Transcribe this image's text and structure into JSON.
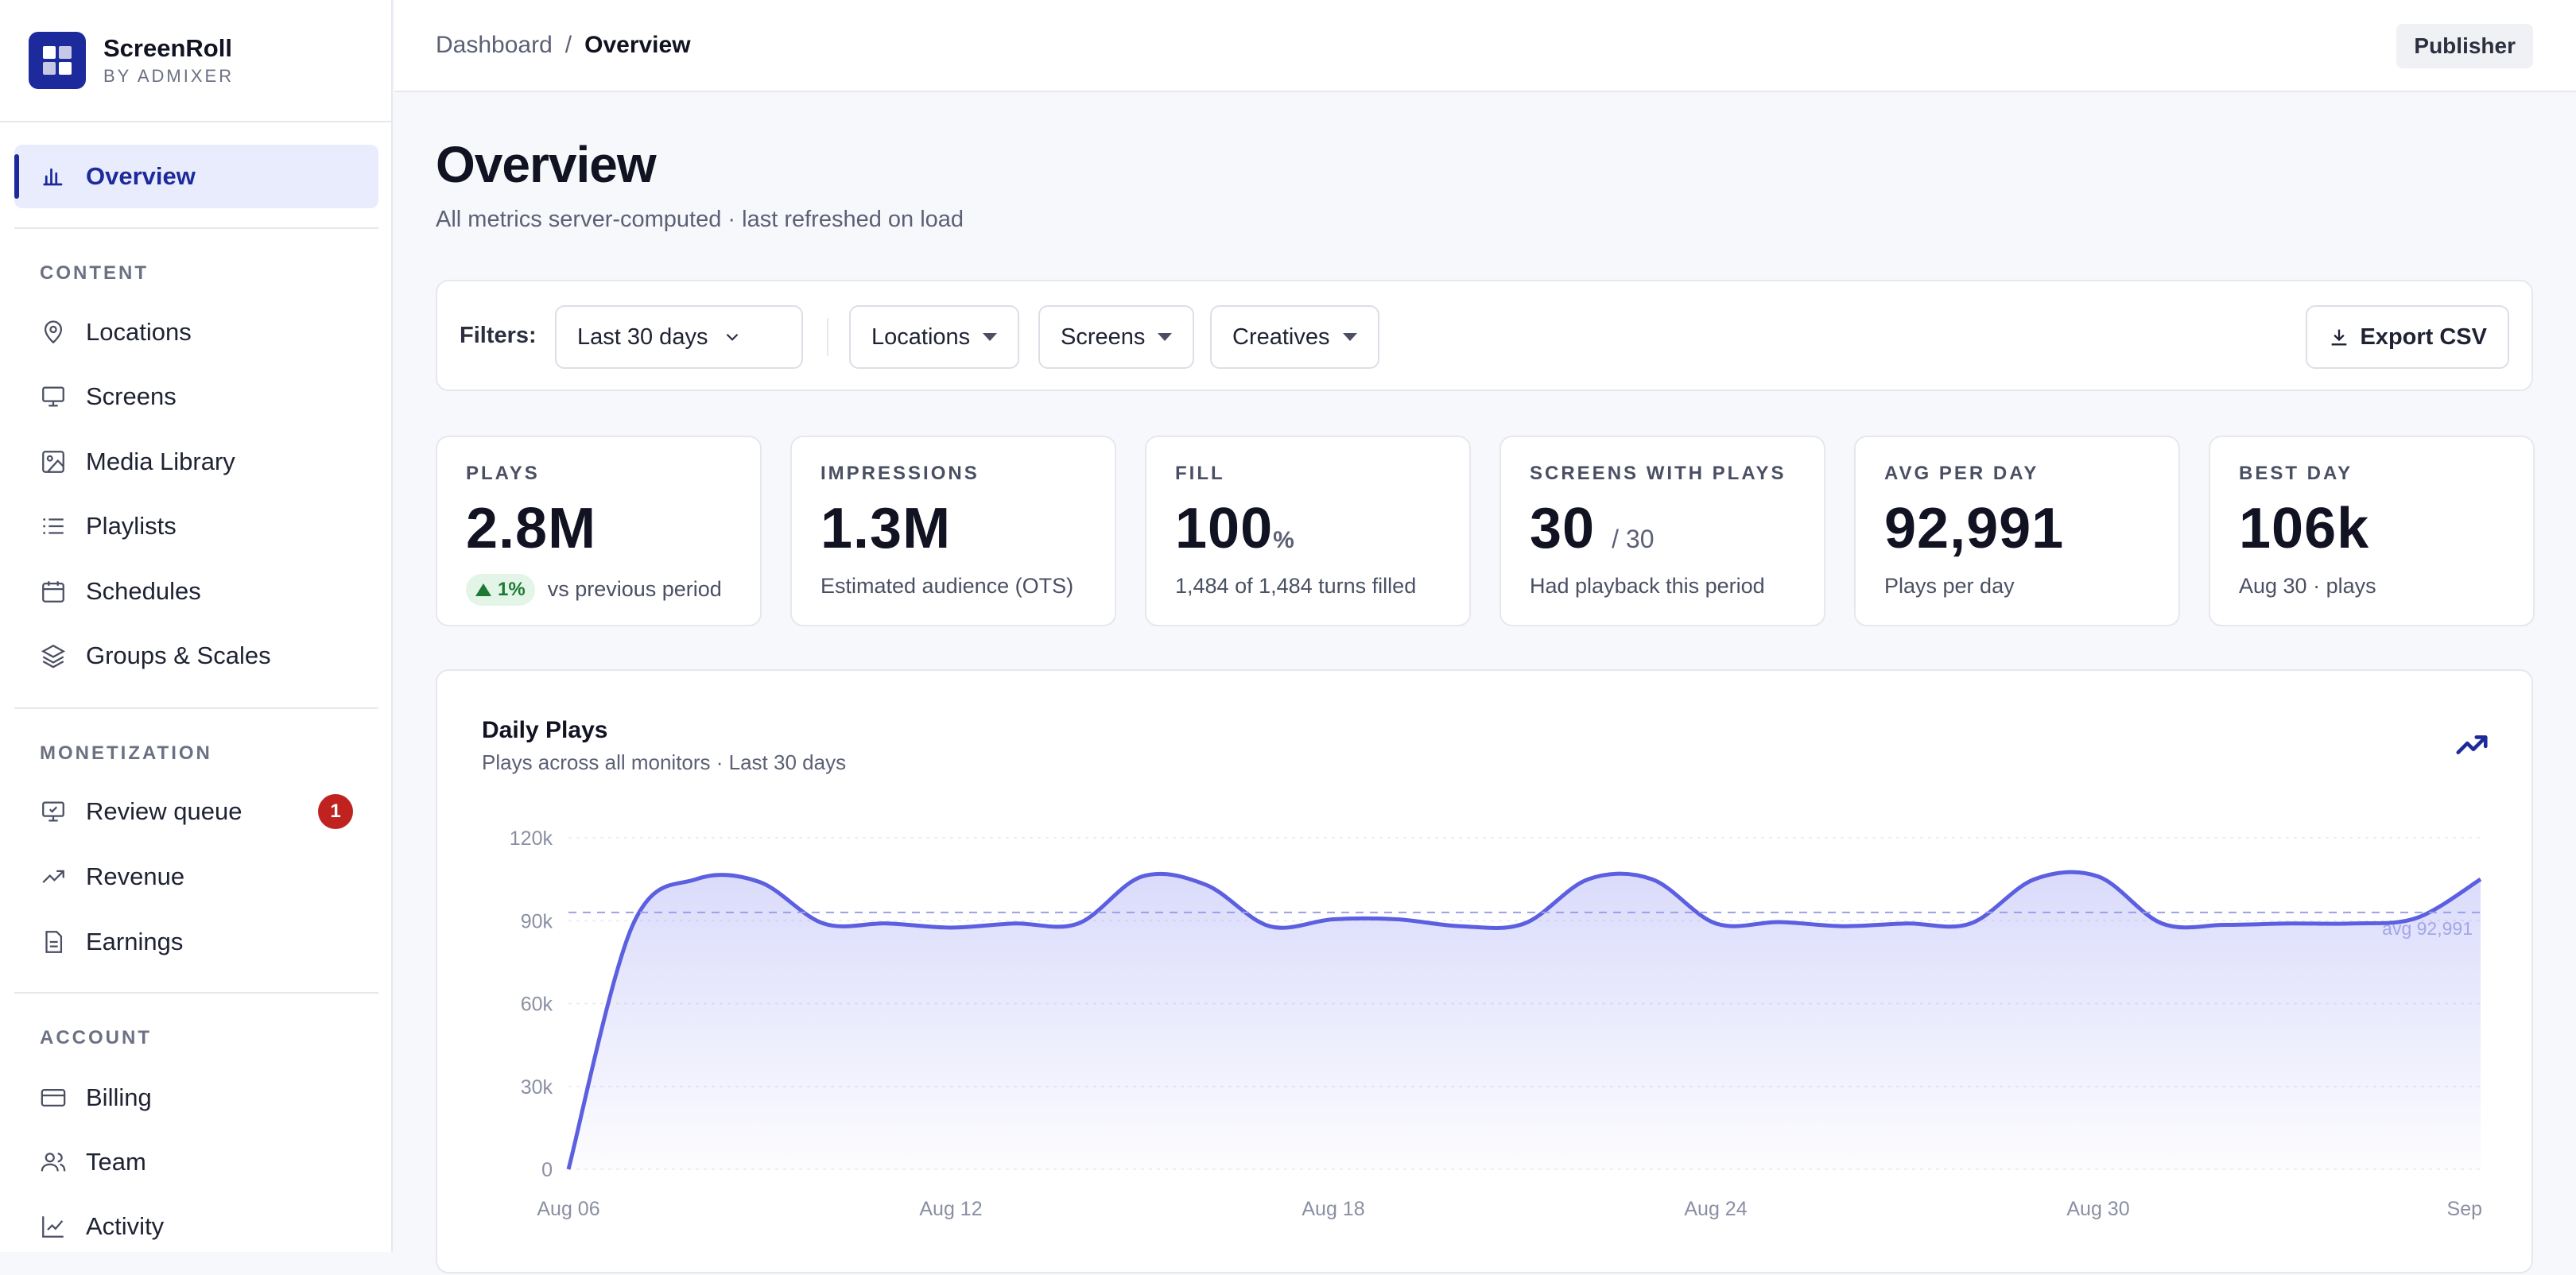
{
  "brand": {
    "name": "ScreenRoll",
    "sub": "BY ADMIXER"
  },
  "sidebar": {
    "active": {
      "label": "Overview",
      "icon": "bar-chart-icon"
    },
    "sections": [
      {
        "title": "CONTENT",
        "items": [
          {
            "label": "Locations",
            "icon": "map-pin-icon"
          },
          {
            "label": "Screens",
            "icon": "monitor-icon"
          },
          {
            "label": "Media Library",
            "icon": "image-icon"
          },
          {
            "label": "Playlists",
            "icon": "list-icon"
          },
          {
            "label": "Schedules",
            "icon": "calendar-icon"
          },
          {
            "label": "Groups & Scales",
            "icon": "layers-icon"
          }
        ]
      },
      {
        "title": "MONETIZATION",
        "items": [
          {
            "label": "Review queue",
            "icon": "review-icon",
            "badge": "1"
          },
          {
            "label": "Revenue",
            "icon": "trending-up-icon"
          },
          {
            "label": "Earnings",
            "icon": "document-icon"
          }
        ]
      },
      {
        "title": "ACCOUNT",
        "items": [
          {
            "label": "Billing",
            "icon": "credit-card-icon"
          },
          {
            "label": "Team",
            "icon": "users-icon"
          },
          {
            "label": "Activity",
            "icon": "activity-icon"
          }
        ]
      }
    ]
  },
  "topbar": {
    "crumb_root": "Dashboard",
    "crumb_sep": "/",
    "crumb_current": "Overview",
    "role": "Publisher"
  },
  "page": {
    "title": "Overview",
    "subtitle": "All metrics server-computed · last refreshed on load"
  },
  "filters": {
    "label": "Filters:",
    "range": "Last 30 days",
    "locations": "Locations",
    "screens": "Screens",
    "creatives": "Creatives",
    "export": "Export CSV"
  },
  "kpis": [
    {
      "key": "PLAYS",
      "value": "2.8M",
      "delta": "1%",
      "desc": "vs previous period"
    },
    {
      "key": "IMPRESSIONS",
      "value": "1.3M",
      "desc": "Estimated audience (OTS)"
    },
    {
      "key": "FILL",
      "value": "100",
      "unit": "%",
      "desc": "1,484 of 1,484 turns filled"
    },
    {
      "key": "SCREENS WITH PLAYS",
      "value": "30",
      "suffix": "/ 30",
      "desc": "Had playback this period"
    },
    {
      "key": "AVG PER DAY",
      "value": "92,991",
      "desc": "Plays per day"
    },
    {
      "key": "BEST DAY",
      "value": "106k",
      "desc": "Aug 30 · plays"
    }
  ],
  "colors": {
    "accent": "#1d2a9c",
    "line": "#5b5fe0",
    "positive": "#1c7a34",
    "badge": "#c0231f"
  },
  "chart_data": {
    "type": "area",
    "title": "Daily Plays",
    "subtitle": "Plays across all monitors · Last 30 days",
    "x": [
      "Aug 06",
      "Aug 07",
      "Aug 08",
      "Aug 09",
      "Aug 10",
      "Aug 11",
      "Aug 12",
      "Aug 13",
      "Aug 14",
      "Aug 15",
      "Aug 16",
      "Aug 17",
      "Aug 18",
      "Aug 19",
      "Aug 20",
      "Aug 21",
      "Aug 22",
      "Aug 23",
      "Aug 24",
      "Aug 25",
      "Aug 26",
      "Aug 27",
      "Aug 28",
      "Aug 29",
      "Aug 30",
      "Aug 31",
      "Sep 01",
      "Sep 02",
      "Sep 03",
      "Sep 04",
      "Sep 05"
    ],
    "values": [
      0,
      88000,
      105000,
      104000,
      89000,
      89000,
      87500,
      89000,
      89000,
      106000,
      103000,
      88000,
      90500,
      90500,
      88000,
      89000,
      105000,
      105000,
      89000,
      89500,
      88000,
      89000,
      89000,
      105000,
      106000,
      89000,
      88500,
      89000,
      89000,
      91000,
      105000
    ],
    "ylim": [
      0,
      120000
    ],
    "yticks": [
      "0",
      "30k",
      "60k",
      "90k",
      "120k"
    ],
    "ytick_values": [
      0,
      30000,
      60000,
      90000,
      120000
    ],
    "xtick_labels": [
      "Aug 06",
      "Aug 12",
      "Aug 18",
      "Aug 24",
      "Aug 30",
      "Sep"
    ],
    "xtick_index": [
      0,
      6,
      12,
      18,
      24,
      30
    ],
    "avg": 92991,
    "avg_label": "avg 92,991",
    "grid": true
  }
}
